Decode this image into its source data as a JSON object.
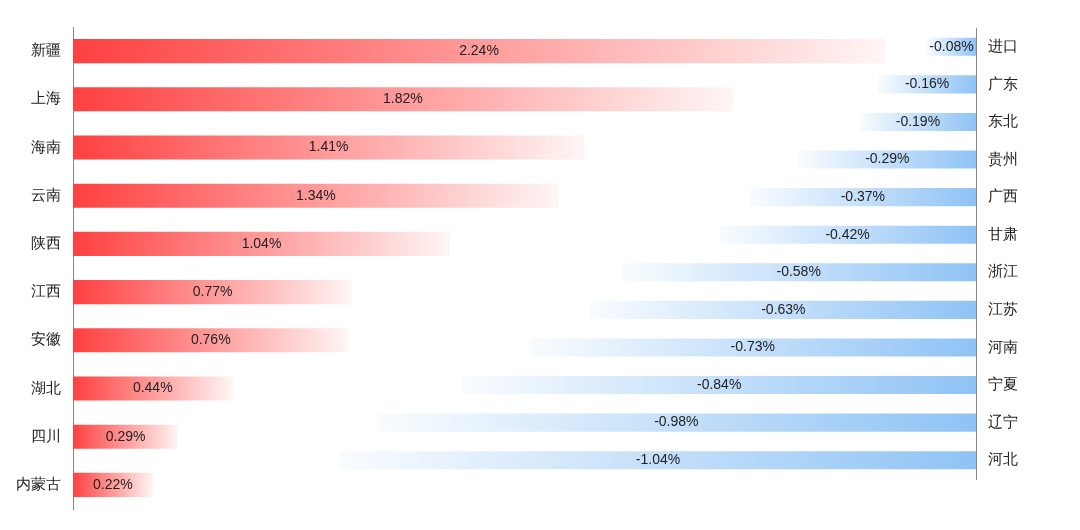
{
  "chart_data": [
    {
      "type": "bar",
      "orientation": "horizontal",
      "tick_labels": "y",
      "legend": false,
      "categories": [
        "新疆",
        "上海",
        "海南",
        "云南",
        "陕西",
        "江西",
        "安徽",
        "湖北",
        "四川",
        "内蒙古"
      ],
      "series": [
        {
          "color": "#ff4040",
          "values": [
            2.24,
            1.82,
            1.41,
            1.34,
            1.04,
            0.77,
            0.76,
            0.44,
            0.29,
            0.22
          ],
          "value_labels": [
            "2.24%",
            "1.82%",
            "1.41%",
            "1.34%",
            "1.04%",
            "0.77%",
            "0.76%",
            "0.44%",
            "0.29%",
            "0.22%"
          ]
        }
      ]
    },
    {
      "type": "bar",
      "orientation": "horizontal",
      "tick_labels": "y",
      "legend": false,
      "categories": [
        "进口",
        "广东",
        "东北",
        "贵州",
        "广西",
        "甘肃",
        "浙江",
        "江苏",
        "河南",
        "宁夏",
        "辽宁",
        "河北"
      ],
      "series": [
        {
          "color": "#8fc3f5",
          "values": [
            -0.08,
            -0.16,
            -0.19,
            -0.29,
            -0.37,
            -0.42,
            -0.58,
            -0.63,
            -0.73,
            -0.84,
            -0.98,
            -1.04
          ],
          "value_labels": [
            "-0.08%",
            "-0.16%",
            "-0.19%",
            "-0.29%",
            "-0.37%",
            "-0.42%",
            "-0.58%",
            "-0.63%",
            "-0.73%",
            "-0.84%",
            "-0.98%",
            "-1.04%"
          ]
        }
      ]
    }
  ]
}
